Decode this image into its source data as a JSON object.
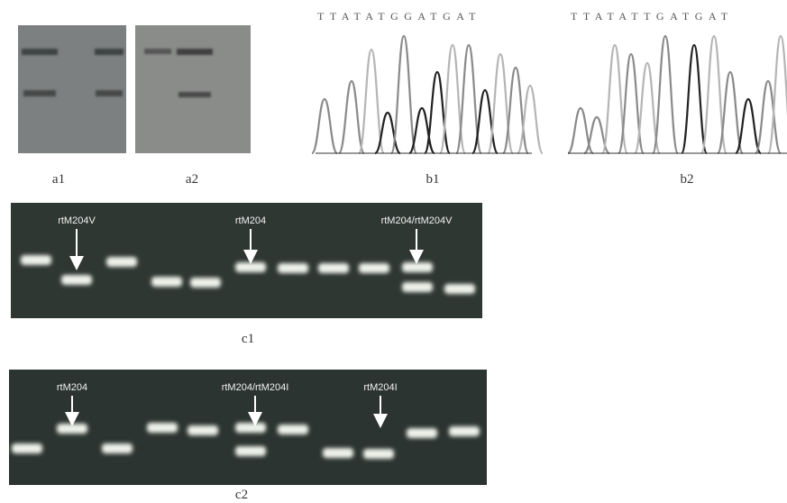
{
  "panels": {
    "a1": {
      "label": "a1"
    },
    "a2": {
      "label": "a2"
    },
    "b1": {
      "label": "b1",
      "sequence": "TTATATGGATGAT"
    },
    "b2": {
      "label": "b2",
      "sequence": "TTATATTGATGAT"
    },
    "c1": {
      "label": "c1",
      "annotations": [
        "rtM204V",
        "rtM204",
        "rtM204/rtM204V"
      ]
    },
    "c2": {
      "label": "c2",
      "annotations": [
        "rtM204",
        "rtM204/rtM204I",
        "rtM204I"
      ]
    }
  }
}
